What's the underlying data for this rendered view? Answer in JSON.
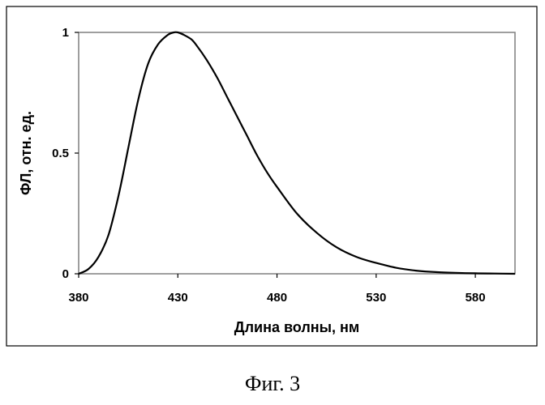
{
  "caption": "Фиг. 3",
  "chart_data": {
    "type": "line",
    "title": "",
    "xlabel": "Длина волны, нм",
    "ylabel": "ФЛ, отн. ед.",
    "xlim": [
      380,
      600
    ],
    "ylim": [
      0,
      1
    ],
    "x_ticks": [
      380,
      430,
      480,
      530,
      580
    ],
    "y_ticks": [
      0,
      0.5,
      1
    ],
    "y_tick_labels": [
      "0",
      "0.5",
      "1"
    ],
    "grid": false,
    "legend": "none",
    "series": [
      {
        "color": "#000000",
        "x": [
          380,
          385,
          390,
          395,
          400,
          405,
          410,
          415,
          420,
          425,
          428,
          430,
          433,
          437,
          440,
          445,
          450,
          455,
          460,
          465,
          470,
          475,
          480,
          490,
          500,
          510,
          520,
          530,
          540,
          550,
          560,
          570,
          580,
          590,
          600
        ],
        "y": [
          0.0,
          0.02,
          0.07,
          0.16,
          0.32,
          0.52,
          0.72,
          0.87,
          0.95,
          0.99,
          1.0,
          1.0,
          0.99,
          0.97,
          0.94,
          0.88,
          0.81,
          0.73,
          0.65,
          0.57,
          0.49,
          0.42,
          0.36,
          0.25,
          0.17,
          0.11,
          0.07,
          0.045,
          0.025,
          0.013,
          0.007,
          0.004,
          0.002,
          0.001,
          0.0
        ]
      }
    ]
  }
}
